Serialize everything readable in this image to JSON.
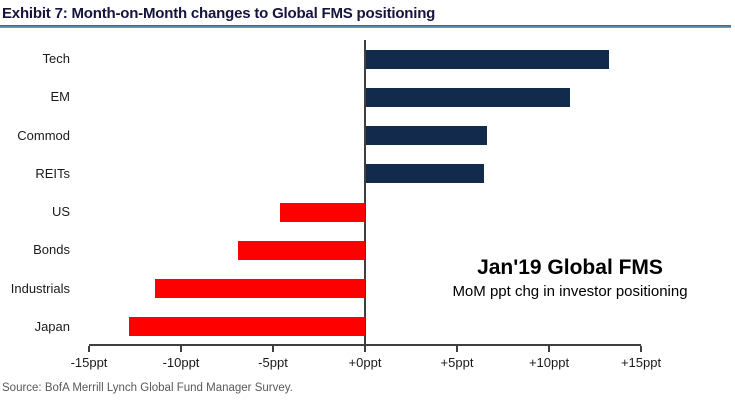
{
  "exhibit": {
    "title": "Exhibit 7: Month-on-Month changes to Global FMS positioning",
    "source": "Source: BofA Merrill Lynch Global Fund Manager Survey."
  },
  "annotation": {
    "title": "Jan'19 Global FMS",
    "subtitle": "MoM ppt chg in investor positioning"
  },
  "chart_data": {
    "type": "bar",
    "orientation": "horizontal",
    "title": "Jan'19 Global FMS",
    "subtitle": "MoM ppt chg in investor positioning",
    "categories": [
      "Tech",
      "EM",
      "Commod",
      "REITs",
      "US",
      "Bonds",
      "Industrials",
      "Japan"
    ],
    "values": [
      13.2,
      11.1,
      6.6,
      6.4,
      -4.6,
      -6.9,
      -11.4,
      -12.8
    ],
    "unit": "ppt",
    "xlim": [
      -15,
      15
    ],
    "x_ticks": [
      -15,
      -10,
      -5,
      0,
      5,
      10,
      15
    ],
    "x_tick_labels": [
      "-15ppt",
      "-10ppt",
      "-5ppt",
      "+0ppt",
      "+5ppt",
      "+10ppt",
      "+15ppt"
    ],
    "grid": false,
    "legend": "none",
    "positive_color": "#122b4d",
    "negative_color": "#ff0000",
    "axis_color": "#3f3f3f"
  },
  "colors": {
    "title_text": "#14143c",
    "title_rule": "#41719c",
    "label_text": "#1a1a1a",
    "source_text": "#595959",
    "background": "#ffffff"
  }
}
